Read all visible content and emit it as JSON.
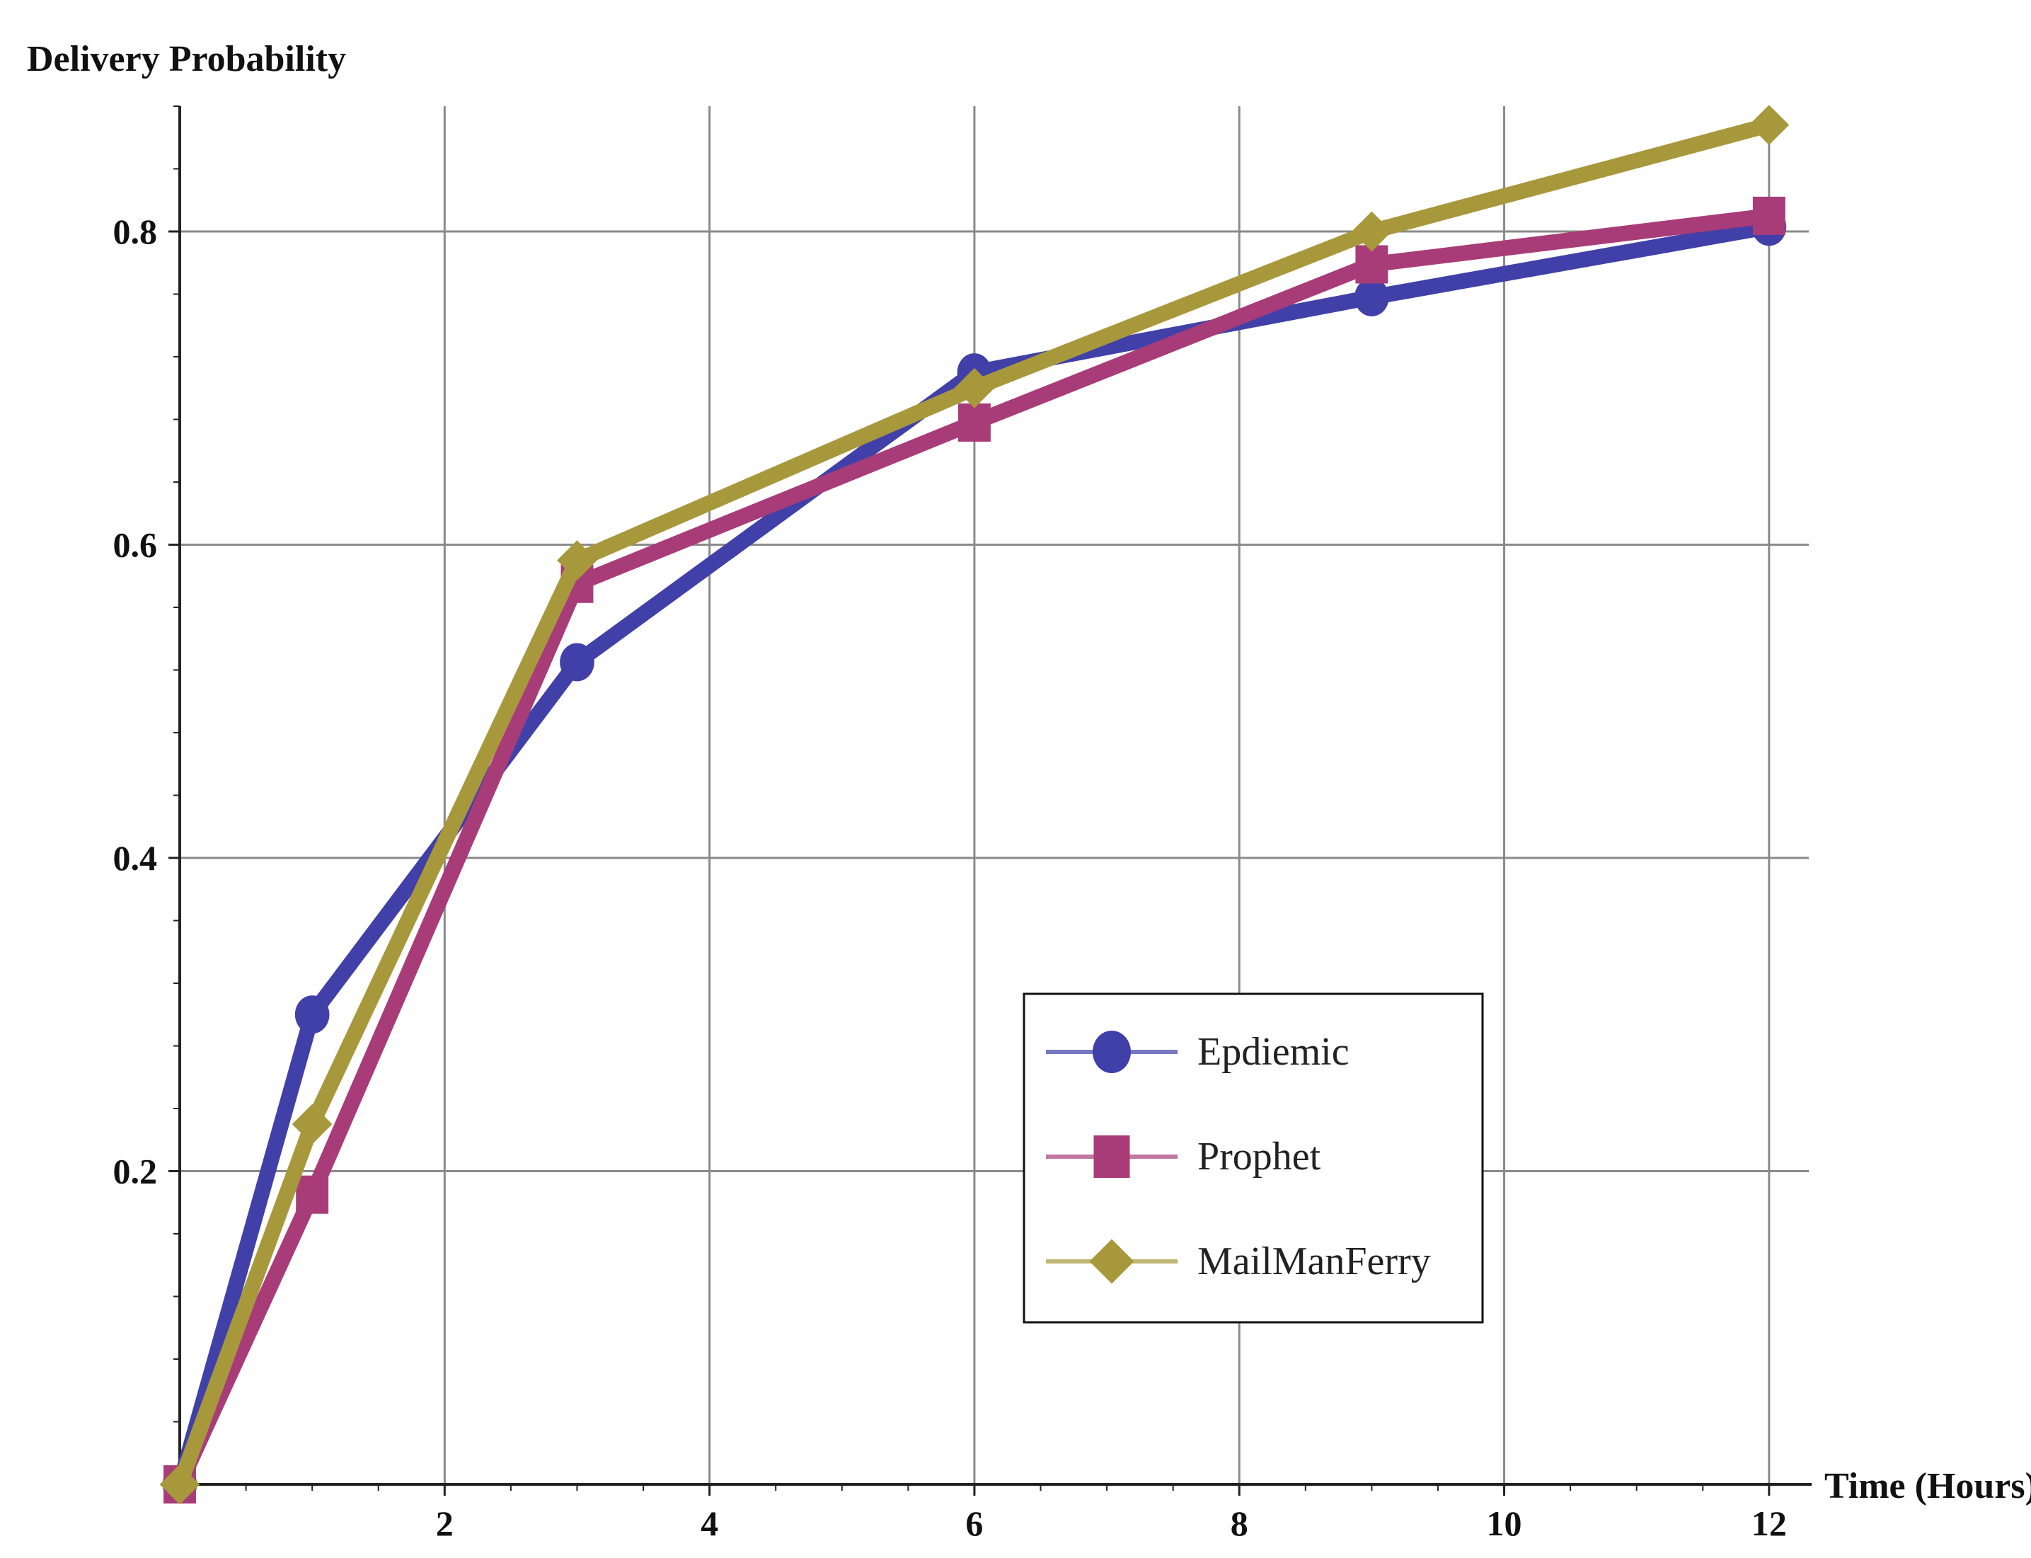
{
  "chart_data": {
    "type": "line",
    "xlabel": "Time (Hours)",
    "ylabel": "Delivery Probability",
    "xlim": [
      0,
      12.3
    ],
    "ylim": [
      0,
      0.88
    ],
    "x_ticks": [
      2,
      4,
      6,
      8,
      10,
      12
    ],
    "y_ticks": [
      0.2,
      0.4,
      0.6,
      0.8
    ],
    "x_tick_labels": [
      "2",
      "4",
      "6",
      "8",
      "10",
      "12"
    ],
    "y_tick_labels": [
      "0.2",
      "0.4",
      "0.6",
      "0.8"
    ],
    "grid": true,
    "legend_position": "center-right",
    "series": [
      {
        "name": "Epdiemic",
        "color": "#4040a8",
        "marker": "circle",
        "x": [
          0,
          1,
          3,
          6,
          9,
          12
        ],
        "y": [
          0.0,
          0.3,
          0.525,
          0.71,
          0.758,
          0.803
        ]
      },
      {
        "name": "Prophet",
        "color": "#a83c78",
        "marker": "square",
        "x": [
          0,
          1,
          3,
          6,
          9,
          12
        ],
        "y": [
          0.0,
          0.185,
          0.575,
          0.678,
          0.779,
          0.81
        ]
      },
      {
        "name": "MailManFerry",
        "color": "#a8983c",
        "marker": "diamond",
        "x": [
          0,
          1,
          3,
          6,
          9,
          12
        ],
        "y": [
          0.0,
          0.23,
          0.59,
          0.7,
          0.8,
          0.868
        ]
      }
    ]
  }
}
